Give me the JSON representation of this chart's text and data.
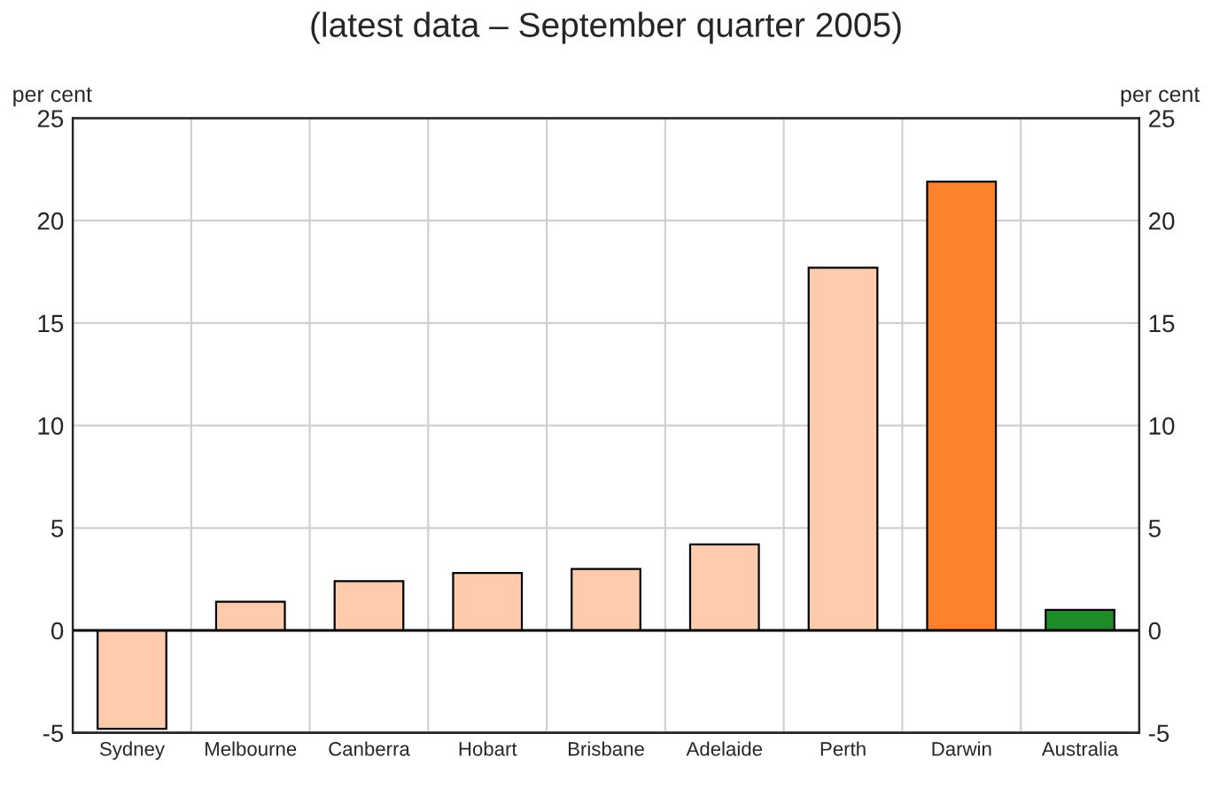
{
  "chart_data": {
    "type": "bar",
    "title": "(latest data – September quarter 2005)",
    "categories": [
      "Sydney",
      "Melbourne",
      "Canberra",
      "Hobart",
      "Brisbane",
      "Adelaide",
      "Perth",
      "Darwin",
      "Australia"
    ],
    "values": [
      -4.8,
      1.4,
      2.4,
      2.8,
      3.0,
      4.2,
      17.7,
      21.9,
      1.0
    ],
    "colors": [
      "#fecbad",
      "#fecbad",
      "#fecbad",
      "#fecbad",
      "#fecbad",
      "#fecbad",
      "#fecbad",
      "#fe822e",
      "#1e8c28"
    ],
    "ylabel": "per cent",
    "y2label": "per cent",
    "ylim": [
      -5,
      25
    ],
    "yticks": [
      -5,
      0,
      5,
      10,
      15,
      20,
      25
    ],
    "y2lim": [
      -5,
      25
    ],
    "y2ticks": [
      -5,
      0,
      5,
      10,
      15,
      20,
      25
    ],
    "grid": true
  }
}
